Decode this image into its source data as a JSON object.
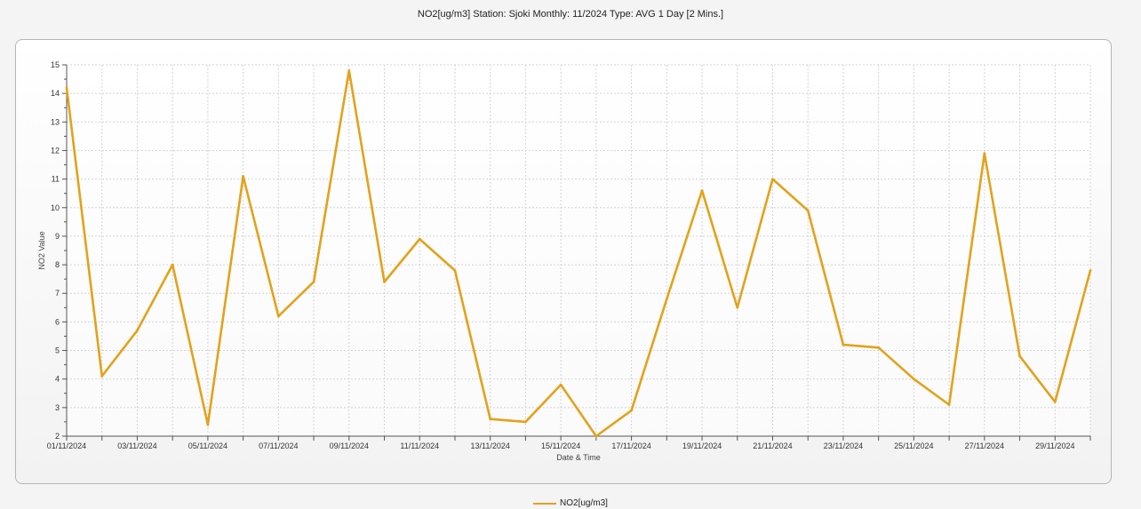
{
  "title": "NO2[ug/m3] Station: Sjoki  Monthly: 11/2024  Type: AVG 1 Day [2 Mins.]",
  "legend": {
    "label": "NO2[ug/m3]"
  },
  "colors": {
    "series": "#E3A21A",
    "grid": "#d4d4d4",
    "axis": "#555555"
  },
  "chart_data": {
    "type": "line",
    "xlabel": "Date & Time",
    "ylabel": "NO2 Value",
    "ylim": [
      2,
      15
    ],
    "yticks": [
      2,
      3,
      4,
      5,
      6,
      7,
      8,
      9,
      10,
      11,
      12,
      13,
      14,
      15
    ],
    "xlim": [
      "01/11/2024",
      "30/11/2024"
    ],
    "xtick_labels": [
      "01/11/2024",
      "03/11/2024",
      "05/11/2024",
      "07/11/2024",
      "09/11/2024",
      "11/11/2024",
      "13/11/2024",
      "15/11/2024",
      "17/11/2024",
      "19/11/2024",
      "21/11/2024",
      "23/11/2024",
      "25/11/2024",
      "27/11/2024",
      "29/11/2024"
    ],
    "grid": true,
    "legend_position": "bottom",
    "x": [
      "01/11/2024",
      "02/11/2024",
      "03/11/2024",
      "04/11/2024",
      "05/11/2024",
      "06/11/2024",
      "07/11/2024",
      "08/11/2024",
      "09/11/2024",
      "10/11/2024",
      "11/11/2024",
      "12/11/2024",
      "13/11/2024",
      "14/11/2024",
      "15/11/2024",
      "16/11/2024",
      "17/11/2024",
      "18/11/2024",
      "19/11/2024",
      "20/11/2024",
      "21/11/2024",
      "22/11/2024",
      "23/11/2024",
      "24/11/2024",
      "25/11/2024",
      "26/11/2024",
      "27/11/2024",
      "28/11/2024",
      "29/11/2024",
      "30/11/2024"
    ],
    "series": [
      {
        "name": "NO2[ug/m3]",
        "values": [
          14.2,
          4.1,
          5.7,
          8.0,
          2.4,
          11.1,
          6.2,
          7.4,
          14.8,
          7.4,
          8.9,
          7.8,
          2.6,
          2.5,
          3.8,
          2.0,
          2.9,
          6.8,
          10.6,
          6.5,
          11.0,
          9.9,
          5.2,
          5.1,
          4.0,
          3.1,
          11.9,
          4.8,
          3.2,
          7.8
        ]
      }
    ]
  }
}
